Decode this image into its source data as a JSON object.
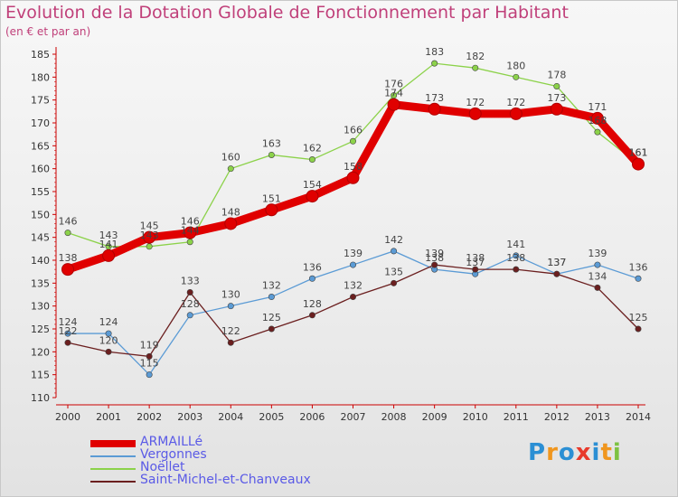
{
  "header": {
    "title": "Evolution de la Dotation Globale de Fonctionnement par Habitant",
    "subtitle": "(en € et par an)"
  },
  "logo": {
    "text": "Proxiti",
    "letter_colors": [
      "#2b8fd4",
      "#f0961e",
      "#2b8fd4",
      "#e83a2c",
      "#2b8fd4",
      "#f0961e",
      "#7dc242"
    ]
  },
  "chart_data": {
    "type": "line",
    "title": "Evolution de la Dotation Globale de Fonctionnement par Habitant",
    "subtitle": "(en € et par an)",
    "xlabel": "",
    "ylabel": "",
    "x": [
      "2000",
      "2001",
      "2002",
      "2003",
      "2004",
      "2005",
      "2006",
      "2007",
      "2008",
      "2009",
      "2010",
      "2011",
      "2012",
      "2013",
      "2014"
    ],
    "ylim": [
      110,
      185
    ],
    "yticks": [
      110,
      115,
      120,
      125,
      130,
      135,
      140,
      145,
      150,
      155,
      160,
      165,
      170,
      175,
      180,
      185
    ],
    "grid": false,
    "legend_placement": "bottom-left",
    "series": [
      {
        "name": "ARMAILLé",
        "color": "#e00000",
        "emphasis": true,
        "values": [
          138,
          141,
          145,
          146,
          148,
          151,
          154,
          158,
          174,
          173,
          172,
          172,
          173,
          171,
          161
        ],
        "labels": [
          "138",
          "141",
          "145",
          "146",
          "148",
          "151",
          "154",
          "158",
          "174",
          "173",
          "172",
          "172",
          "173",
          "171",
          "161"
        ]
      },
      {
        "name": "Vergonnes",
        "color": "#5b9bd5",
        "emphasis": false,
        "values": [
          124,
          124,
          115,
          128,
          130,
          132,
          136,
          139,
          142,
          138,
          137,
          141,
          137,
          139,
          136
        ],
        "labels": [
          "124",
          "124",
          "115",
          "128",
          "130",
          "132",
          "136",
          "139",
          "142",
          "138",
          "137",
          "141",
          "137",
          "139",
          "136"
        ]
      },
      {
        "name": "Noëllet",
        "color": "#8cd24a",
        "emphasis": false,
        "values": [
          146,
          143,
          143,
          144,
          160,
          163,
          162,
          166,
          176,
          183,
          182,
          180,
          178,
          168,
          161
        ],
        "labels": [
          "146",
          "143",
          "143",
          "144",
          "160",
          "163",
          "162",
          "166",
          "176",
          "183",
          "182",
          "180",
          "178",
          "168",
          "161"
        ]
      },
      {
        "name": "Saint-Michel-et-Chanveaux",
        "color": "#6b1f1f",
        "emphasis": false,
        "values": [
          122,
          120,
          119,
          133,
          122,
          125,
          128,
          132,
          135,
          139,
          138,
          138,
          137,
          134,
          125
        ],
        "labels": [
          "122",
          "120",
          "119",
          "133",
          "122",
          "125",
          "128",
          "132",
          "135",
          "139",
          "138",
          "138",
          "137",
          "134",
          "125"
        ]
      }
    ]
  }
}
